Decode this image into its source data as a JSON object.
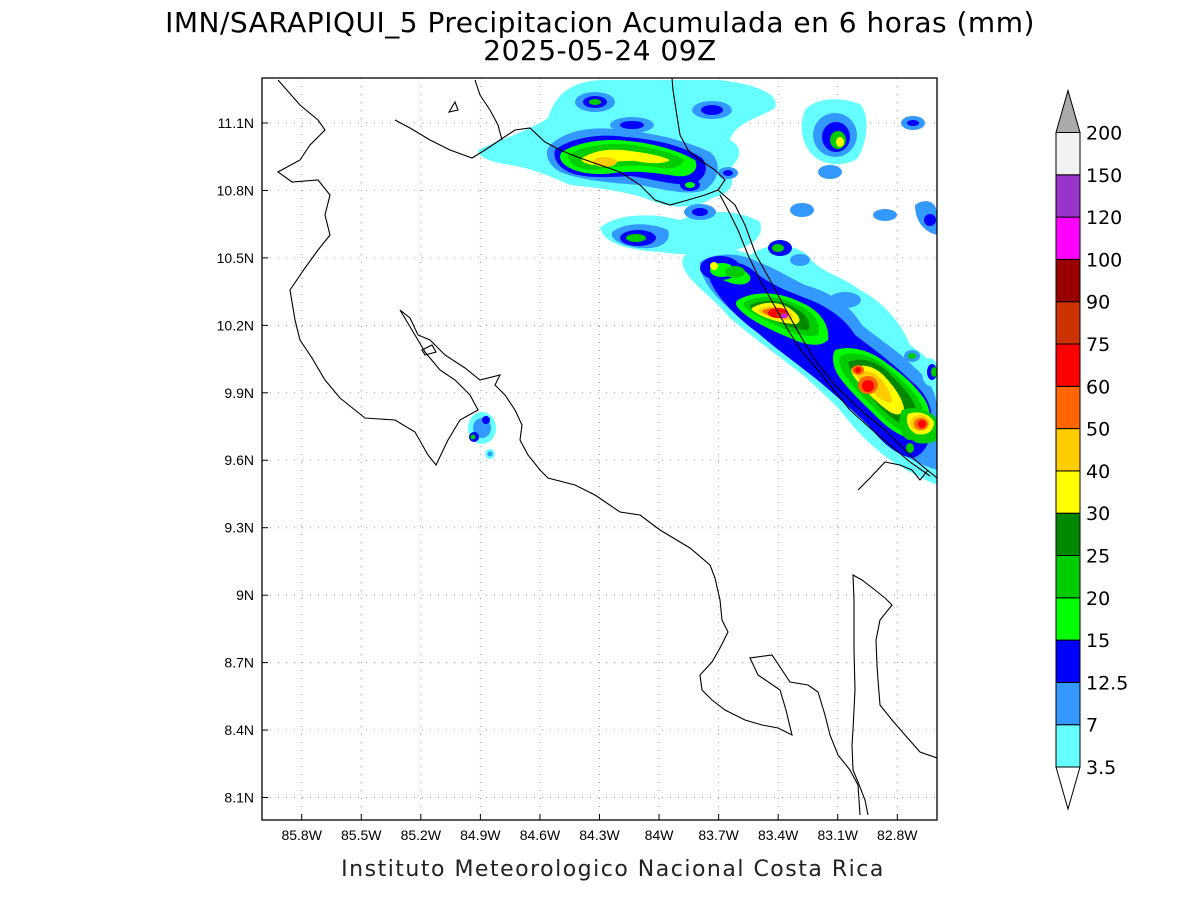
{
  "title": {
    "line1": "IMN/SARAPIQUI_5 Precipitacion Acumulada en 6 horas (mm)",
    "line2": "2025-05-24 09Z"
  },
  "footer": "Instituto Meteorologico Nacional Costa Rica",
  "map": {
    "lon_range": [
      -86.0,
      -82.6
    ],
    "lat_range": [
      8.0,
      11.3
    ],
    "grid": "dotted",
    "x_ticks": [
      "85.8W",
      "85.5W",
      "85.2W",
      "84.9W",
      "84.6W",
      "84.3W",
      "84W",
      "83.7W",
      "83.4W",
      "83.1W",
      "82.8W"
    ],
    "x_tick_values": [
      -85.8,
      -85.5,
      -85.2,
      -84.9,
      -84.6,
      -84.3,
      -84.0,
      -83.7,
      -83.4,
      -83.1,
      -82.8
    ],
    "y_ticks": [
      "11.1N",
      "10.8N",
      "10.5N",
      "10.2N",
      "9.9N",
      "9.6N",
      "9.3N",
      "9N",
      "8.7N",
      "8.4N",
      "8.1N"
    ],
    "y_tick_values": [
      11.1,
      10.8,
      10.5,
      10.2,
      9.9,
      9.6,
      9.3,
      9.0,
      8.7,
      8.4,
      8.1
    ]
  },
  "colorbar": {
    "labels": [
      "3.5",
      "7",
      "12.5",
      "15",
      "20",
      "25",
      "30",
      "40",
      "50",
      "60",
      "75",
      "90",
      "100",
      "120",
      "150",
      "200"
    ],
    "colors": [
      "#ffffff",
      "#66ffff",
      "#3399ff",
      "#0000ff",
      "#00ff00",
      "#00cc00",
      "#008800",
      "#ffff00",
      "#ffcc00",
      "#ff6600",
      "#ff0000",
      "#cc3300",
      "#990000",
      "#ff00ff",
      "#9933cc",
      "#f2f2f2",
      "#aaaaaa"
    ]
  }
}
